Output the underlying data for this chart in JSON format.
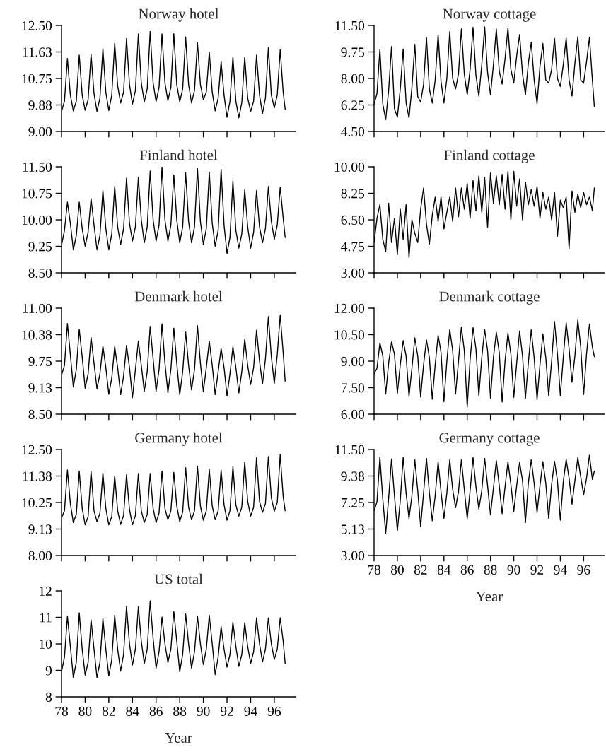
{
  "chart_data": [
    {
      "type": "line",
      "title": "Norway hotel",
      "tick_labels": "y",
      "xlim": [
        78,
        97.8
      ],
      "xticks": [
        {
          "value": 78,
          "label": null
        },
        {
          "value": 80,
          "label": null
        },
        {
          "value": 82,
          "label": null
        },
        {
          "value": 84,
          "label": null
        },
        {
          "value": 86,
          "label": null
        },
        {
          "value": 88,
          "label": null
        },
        {
          "value": 90,
          "label": null
        },
        {
          "value": 92,
          "label": null
        },
        {
          "value": 94,
          "label": null
        },
        {
          "value": 96,
          "label": null
        }
      ],
      "ylim": [
        9,
        12.5
      ],
      "yticks": [
        {
          "value": 9,
          "label": "9.00"
        },
        {
          "value": 9.875,
          "label": "9.88"
        },
        {
          "value": 10.75,
          "label": "10.75"
        },
        {
          "value": 11.625,
          "label": "11.63"
        },
        {
          "value": 12.5,
          "label": "12.50"
        }
      ],
      "x": [
        78,
        78.25,
        78.5,
        78.75,
        79,
        79.25,
        79.5,
        79.75,
        80,
        80.25,
        80.5,
        80.75,
        81,
        81.25,
        81.5,
        81.75,
        82,
        82.25,
        82.5,
        82.75,
        83,
        83.25,
        83.5,
        83.75,
        84,
        84.25,
        84.5,
        84.75,
        85,
        85.25,
        85.5,
        85.75,
        86,
        86.25,
        86.5,
        86.75,
        87,
        87.25,
        87.5,
        87.75,
        88,
        88.25,
        88.5,
        88.75,
        89,
        89.25,
        89.5,
        89.75,
        90,
        90.25,
        90.5,
        90.75,
        91,
        91.25,
        91.5,
        91.75,
        92,
        92.25,
        92.5,
        92.75,
        93,
        93.25,
        93.5,
        93.75,
        94,
        94.25,
        94.5,
        94.75,
        95,
        95.25,
        95.5,
        95.75,
        96,
        96.25,
        96.5,
        96.75,
        96.92
      ],
      "series": [
        {
          "color": "#000000",
          "values": [
            9.66,
            10.0,
            11.41,
            10.2,
            9.68,
            10.0,
            11.52,
            10.2,
            9.7,
            10.05,
            11.55,
            10.25,
            9.66,
            10.1,
            11.73,
            10.3,
            9.69,
            10.2,
            11.91,
            10.5,
            9.94,
            10.3,
            12.07,
            10.55,
            9.9,
            10.35,
            12.22,
            10.6,
            9.98,
            10.4,
            12.3,
            10.6,
            9.99,
            10.45,
            12.22,
            10.6,
            10.02,
            10.45,
            12.23,
            10.55,
            9.98,
            10.4,
            12.12,
            10.55,
            9.94,
            10.35,
            11.93,
            10.55,
            10.05,
            10.3,
            11.62,
            10.3,
            9.68,
            10.1,
            11.3,
            10.2,
            9.47,
            10.0,
            11.46,
            10.0,
            9.45,
            9.95,
            11.46,
            10.1,
            9.66,
            10.0,
            11.52,
            10.2,
            9.59,
            10.1,
            11.77,
            10.2,
            9.78,
            10.2,
            11.7,
            10.3,
            9.73
          ]
        }
      ]
    },
    {
      "type": "line",
      "title": "Norway cottage",
      "tick_labels": "y",
      "xlim": [
        78,
        97.8
      ],
      "xticks": [
        {
          "value": 78,
          "label": null
        },
        {
          "value": 80,
          "label": null
        },
        {
          "value": 82,
          "label": null
        },
        {
          "value": 84,
          "label": null
        },
        {
          "value": 86,
          "label": null
        },
        {
          "value": 88,
          "label": null
        },
        {
          "value": 90,
          "label": null
        },
        {
          "value": 92,
          "label": null
        },
        {
          "value": 94,
          "label": null
        },
        {
          "value": 96,
          "label": null
        }
      ],
      "ylim": [
        4.5,
        11.5
      ],
      "yticks": [
        {
          "value": 4.5,
          "label": "4.50"
        },
        {
          "value": 6.25,
          "label": "6.25"
        },
        {
          "value": 8,
          "label": "8.00"
        },
        {
          "value": 9.75,
          "label": "9.75"
        },
        {
          "value": 11.5,
          "label": "11.50"
        }
      ],
      "x": [
        78,
        78.25,
        78.5,
        78.75,
        79,
        79.25,
        79.5,
        79.75,
        80,
        80.25,
        80.5,
        80.75,
        81,
        81.25,
        81.5,
        81.75,
        82,
        82.25,
        82.5,
        82.75,
        83,
        83.25,
        83.5,
        83.75,
        84,
        84.25,
        84.5,
        84.75,
        85,
        85.25,
        85.5,
        85.75,
        86,
        86.25,
        86.5,
        86.75,
        87,
        87.25,
        87.5,
        87.75,
        88,
        88.25,
        88.5,
        88.75,
        89,
        89.25,
        89.5,
        89.75,
        90,
        90.25,
        90.5,
        90.75,
        91,
        91.25,
        91.5,
        91.75,
        92,
        92.25,
        92.5,
        92.75,
        93,
        93.25,
        93.5,
        93.75,
        94,
        94.25,
        94.5,
        94.75,
        95,
        95.25,
        95.5,
        95.75,
        96,
        96.25,
        96.5,
        96.75,
        96.92
      ],
      "series": [
        {
          "color": "#000000",
          "values": [
            6.3,
            7.0,
            9.94,
            6.3,
            5.28,
            7.2,
            10.12,
            6.0,
            5.44,
            7.3,
            9.94,
            6.4,
            5.39,
            7.4,
            10.25,
            6.8,
            6.45,
            7.6,
            10.7,
            7.3,
            6.38,
            7.9,
            10.9,
            7.8,
            6.38,
            8.0,
            11.09,
            8.0,
            7.31,
            8.3,
            11.27,
            8.3,
            6.92,
            8.6,
            11.38,
            8.2,
            6.84,
            8.9,
            11.41,
            8.4,
            6.92,
            8.9,
            11.27,
            8.5,
            7.63,
            9.3,
            11.33,
            8.6,
            7.7,
            9.5,
            10.9,
            8.3,
            6.92,
            9.0,
            10.39,
            7.9,
            6.34,
            8.8,
            10.31,
            7.9,
            7.7,
            8.6,
            10.64,
            8.0,
            7.47,
            8.9,
            10.67,
            7.9,
            6.84,
            9.0,
            10.75,
            7.9,
            7.7,
            9.1,
            10.72,
            7.9,
            6.14
          ]
        }
      ]
    },
    {
      "type": "line",
      "title": "Finland hotel",
      "tick_labels": "y",
      "xlim": [
        78,
        97.8
      ],
      "xticks": [
        {
          "value": 78,
          "label": null
        },
        {
          "value": 80,
          "label": null
        },
        {
          "value": 82,
          "label": null
        },
        {
          "value": 84,
          "label": null
        },
        {
          "value": 86,
          "label": null
        },
        {
          "value": 88,
          "label": null
        },
        {
          "value": 90,
          "label": null
        },
        {
          "value": 92,
          "label": null
        },
        {
          "value": 94,
          "label": null
        },
        {
          "value": 96,
          "label": null
        }
      ],
      "ylim": [
        8.5,
        11.5
      ],
      "yticks": [
        {
          "value": 8.5,
          "label": "8.50"
        },
        {
          "value": 9.25,
          "label": "9.25"
        },
        {
          "value": 10,
          "label": "10.00"
        },
        {
          "value": 10.75,
          "label": "10.75"
        },
        {
          "value": 11.5,
          "label": "11.50"
        }
      ],
      "x": [
        78,
        78.25,
        78.5,
        78.75,
        79,
        79.25,
        79.5,
        79.75,
        80,
        80.25,
        80.5,
        80.75,
        81,
        81.25,
        81.5,
        81.75,
        82,
        82.25,
        82.5,
        82.75,
        83,
        83.25,
        83.5,
        83.75,
        84,
        84.25,
        84.5,
        84.75,
        85,
        85.25,
        85.5,
        85.75,
        86,
        86.25,
        86.5,
        86.75,
        87,
        87.25,
        87.5,
        87.75,
        88,
        88.25,
        88.5,
        88.75,
        89,
        89.25,
        89.5,
        89.75,
        90,
        90.25,
        90.5,
        90.75,
        91,
        91.25,
        91.5,
        91.75,
        92,
        92.25,
        92.5,
        92.75,
        93,
        93.25,
        93.5,
        93.75,
        94,
        94.25,
        94.5,
        94.75,
        95,
        95.25,
        95.5,
        95.75,
        96,
        96.25,
        96.5,
        96.75,
        96.92
      ],
      "series": [
        {
          "color": "#000000",
          "values": [
            9.28,
            9.7,
            10.5,
            9.9,
            9.15,
            9.55,
            10.5,
            9.75,
            9.25,
            9.65,
            10.6,
            9.85,
            9.15,
            9.55,
            10.83,
            9.75,
            9.15,
            9.6,
            10.94,
            9.8,
            9.3,
            9.75,
            11.18,
            9.9,
            9.4,
            9.8,
            11.2,
            10.0,
            9.35,
            9.8,
            11.38,
            10.0,
            9.4,
            9.85,
            11.49,
            10.0,
            9.4,
            9.85,
            11.27,
            10.0,
            9.35,
            9.8,
            11.33,
            9.95,
            9.35,
            9.8,
            11.45,
            9.95,
            9.3,
            9.75,
            11.35,
            9.9,
            9.25,
            9.7,
            11.43,
            9.85,
            9.05,
            9.5,
            11.1,
            9.7,
            9.2,
            9.6,
            10.85,
            9.8,
            9.2,
            9.65,
            10.83,
            9.8,
            9.35,
            9.75,
            10.94,
            9.95,
            9.45,
            9.85,
            10.93,
            10.05,
            9.5
          ]
        }
      ]
    },
    {
      "type": "line",
      "title": "Finland cottage",
      "tick_labels": "y",
      "xlim": [
        78,
        97.8
      ],
      "xticks": [
        {
          "value": 78,
          "label": null
        },
        {
          "value": 80,
          "label": null
        },
        {
          "value": 82,
          "label": null
        },
        {
          "value": 84,
          "label": null
        },
        {
          "value": 86,
          "label": null
        },
        {
          "value": 88,
          "label": null
        },
        {
          "value": 90,
          "label": null
        },
        {
          "value": 92,
          "label": null
        },
        {
          "value": 94,
          "label": null
        },
        {
          "value": 96,
          "label": null
        }
      ],
      "ylim": [
        3,
        10
      ],
      "yticks": [
        {
          "value": 3,
          "label": "3.00"
        },
        {
          "value": 4.75,
          "label": "4.75"
        },
        {
          "value": 6.5,
          "label": "6.50"
        },
        {
          "value": 8.25,
          "label": "8.25"
        },
        {
          "value": 10,
          "label": "10.00"
        }
      ],
      "x": [
        78,
        78.25,
        78.5,
        78.75,
        79,
        79.25,
        79.5,
        79.75,
        80,
        80.25,
        80.5,
        80.75,
        81,
        81.25,
        81.5,
        81.75,
        82,
        82.25,
        82.5,
        82.75,
        83,
        83.25,
        83.5,
        83.75,
        84,
        84.25,
        84.5,
        84.75,
        85,
        85.25,
        85.5,
        85.75,
        86,
        86.25,
        86.5,
        86.75,
        87,
        87.25,
        87.5,
        87.75,
        88,
        88.25,
        88.5,
        88.75,
        89,
        89.25,
        89.5,
        89.75,
        90,
        90.25,
        90.5,
        90.75,
        91,
        91.25,
        91.5,
        91.75,
        92,
        92.25,
        92.5,
        92.75,
        93,
        93.25,
        93.5,
        93.75,
        94,
        94.25,
        94.5,
        94.75,
        95,
        95.25,
        95.5,
        95.75,
        96,
        96.25,
        96.5,
        96.75,
        96.92
      ],
      "series": [
        {
          "color": "#000000",
          "values": [
            5.0,
            6.6,
            7.5,
            5.2,
            4.4,
            7.6,
            5.0,
            6.6,
            4.2,
            7.2,
            5.2,
            7.5,
            4.0,
            6.5,
            5.6,
            5.0,
            7.2,
            8.6,
            6.2,
            4.9,
            6.8,
            8.0,
            6.4,
            8.0,
            5.9,
            7.0,
            8.0,
            6.4,
            8.6,
            6.7,
            8.6,
            7.2,
            8.9,
            6.6,
            9.1,
            7.1,
            9.4,
            7.0,
            9.3,
            6.0,
            9.6,
            7.6,
            9.4,
            7.5,
            9.5,
            7.2,
            9.7,
            6.5,
            9.7,
            7.4,
            9.2,
            6.5,
            9.0,
            7.5,
            8.5,
            7.4,
            8.7,
            6.6,
            8.3,
            7.2,
            8.0,
            6.5,
            8.3,
            5.4,
            7.8,
            7.3,
            8.0,
            4.6,
            8.4,
            7.0,
            8.2,
            7.3,
            8.3,
            7.5,
            8.0,
            7.1,
            8.6
          ]
        }
      ]
    },
    {
      "type": "line",
      "title": "Denmark hotel",
      "tick_labels": "y",
      "xlim": [
        78,
        97.8
      ],
      "xticks": [
        {
          "value": 78,
          "label": null
        },
        {
          "value": 80,
          "label": null
        },
        {
          "value": 82,
          "label": null
        },
        {
          "value": 84,
          "label": null
        },
        {
          "value": 86,
          "label": null
        },
        {
          "value": 88,
          "label": null
        },
        {
          "value": 90,
          "label": null
        },
        {
          "value": 92,
          "label": null
        },
        {
          "value": 94,
          "label": null
        },
        {
          "value": 96,
          "label": null
        }
      ],
      "ylim": [
        8.5,
        11
      ],
      "yticks": [
        {
          "value": 8.5,
          "label": "8.50"
        },
        {
          "value": 9.125,
          "label": "9.13"
        },
        {
          "value": 9.75,
          "label": "9.75"
        },
        {
          "value": 10.375,
          "label": "10.38"
        },
        {
          "value": 11,
          "label": "11.00"
        }
      ],
      "x": [
        78,
        78.25,
        78.5,
        78.75,
        79,
        79.25,
        79.5,
        79.75,
        80,
        80.25,
        80.5,
        80.75,
        81,
        81.25,
        81.5,
        81.75,
        82,
        82.25,
        82.5,
        82.75,
        83,
        83.25,
        83.5,
        83.75,
        84,
        84.25,
        84.5,
        84.75,
        85,
        85.25,
        85.5,
        85.75,
        86,
        86.25,
        86.5,
        86.75,
        87,
        87.25,
        87.5,
        87.75,
        88,
        88.25,
        88.5,
        88.75,
        89,
        89.25,
        89.5,
        89.75,
        90,
        90.25,
        90.5,
        90.75,
        91,
        91.25,
        91.5,
        91.75,
        92,
        92.25,
        92.5,
        92.75,
        93,
        93.25,
        93.5,
        93.75,
        94,
        94.25,
        94.5,
        94.75,
        95,
        95.25,
        95.5,
        95.75,
        96,
        96.25,
        96.5,
        96.75,
        96.92
      ],
      "series": [
        {
          "color": "#000000",
          "values": [
            9.42,
            9.65,
            10.64,
            9.9,
            9.14,
            9.55,
            10.5,
            9.85,
            9.11,
            9.45,
            10.31,
            9.7,
            9.1,
            9.45,
            10.11,
            9.6,
            8.97,
            9.35,
            10.09,
            9.6,
            8.96,
            9.4,
            10.12,
            9.6,
            8.89,
            9.55,
            10.22,
            9.65,
            9.04,
            9.5,
            10.57,
            9.8,
            9.04,
            9.55,
            10.63,
            9.7,
            9.01,
            9.55,
            10.53,
            9.7,
            8.96,
            9.5,
            10.44,
            9.65,
            9.07,
            9.55,
            10.59,
            9.7,
            9.03,
            9.6,
            10.22,
            9.65,
            8.96,
            9.5,
            10.05,
            9.6,
            8.93,
            9.45,
            10.09,
            9.6,
            9.0,
            9.5,
            10.27,
            9.65,
            9.2,
            9.6,
            10.48,
            9.75,
            9.21,
            9.8,
            10.8,
            9.85,
            9.23,
            9.9,
            10.84,
            9.95,
            9.28
          ]
        }
      ]
    },
    {
      "type": "line",
      "title": "Denmark cottage",
      "tick_labels": "y",
      "xlim": [
        78,
        97.8
      ],
      "xticks": [
        {
          "value": 78,
          "label": null
        },
        {
          "value": 80,
          "label": null
        },
        {
          "value": 82,
          "label": null
        },
        {
          "value": 84,
          "label": null
        },
        {
          "value": 86,
          "label": null
        },
        {
          "value": 88,
          "label": null
        },
        {
          "value": 90,
          "label": null
        },
        {
          "value": 92,
          "label": null
        },
        {
          "value": 94,
          "label": null
        },
        {
          "value": 96,
          "label": null
        }
      ],
      "ylim": [
        6,
        12
      ],
      "yticks": [
        {
          "value": 6,
          "label": "6.00"
        },
        {
          "value": 7.5,
          "label": "7.50"
        },
        {
          "value": 9,
          "label": "9.00"
        },
        {
          "value": 10.5,
          "label": "10.50"
        },
        {
          "value": 12,
          "label": "12.00"
        }
      ],
      "x": [
        78,
        78.25,
        78.5,
        78.75,
        79,
        79.25,
        79.5,
        79.75,
        80,
        80.25,
        80.5,
        80.75,
        81,
        81.25,
        81.5,
        81.75,
        82,
        82.25,
        82.5,
        82.75,
        83,
        83.25,
        83.5,
        83.75,
        84,
        84.25,
        84.5,
        84.75,
        85,
        85.25,
        85.5,
        85.75,
        86,
        86.25,
        86.5,
        86.75,
        87,
        87.25,
        87.5,
        87.75,
        88,
        88.25,
        88.5,
        88.75,
        89,
        89.25,
        89.5,
        89.75,
        90,
        90.25,
        90.5,
        90.75,
        91,
        91.25,
        91.5,
        91.75,
        92,
        92.25,
        92.5,
        92.75,
        93,
        93.25,
        93.5,
        93.75,
        94,
        94.25,
        94.5,
        94.75,
        95,
        95.25,
        95.5,
        95.75,
        96,
        96.25,
        96.5,
        96.75,
        96.92
      ],
      "series": [
        {
          "color": "#000000",
          "values": [
            8.28,
            8.6,
            10.03,
            9.3,
            7.14,
            8.9,
            10.09,
            9.4,
            7.17,
            8.8,
            10.16,
            9.3,
            7.0,
            8.6,
            10.32,
            9.3,
            6.97,
            8.8,
            10.2,
            9.2,
            6.85,
            8.8,
            10.47,
            9.5,
            6.71,
            9.0,
            10.79,
            9.6,
            7.14,
            9.0,
            10.93,
            9.6,
            6.4,
            9.1,
            10.9,
            9.7,
            7.04,
            9.2,
            10.79,
            9.6,
            6.9,
            9.2,
            10.63,
            9.5,
            6.69,
            9.0,
            10.6,
            9.4,
            6.95,
            8.9,
            10.7,
            9.3,
            6.9,
            8.9,
            10.77,
            9.2,
            6.82,
            8.8,
            10.55,
            9.2,
            7.04,
            9.0,
            11.24,
            9.4,
            7.04,
            9.2,
            11.17,
            9.7,
            7.81,
            9.3,
            11.33,
            9.8,
            7.11,
            9.4,
            11.1,
            9.8,
            9.26
          ]
        }
      ]
    },
    {
      "type": "line",
      "title": "Germany hotel",
      "tick_labels": "y",
      "xlim": [
        78,
        97.8
      ],
      "xticks": [
        {
          "value": 78,
          "label": null
        },
        {
          "value": 80,
          "label": null
        },
        {
          "value": 82,
          "label": null
        },
        {
          "value": 84,
          "label": null
        },
        {
          "value": 86,
          "label": null
        },
        {
          "value": 88,
          "label": null
        },
        {
          "value": 90,
          "label": null
        },
        {
          "value": 92,
          "label": null
        },
        {
          "value": 94,
          "label": null
        },
        {
          "value": 96,
          "label": null
        }
      ],
      "ylim": [
        8,
        12.5
      ],
      "yticks": [
        {
          "value": 8,
          "label": "8.00"
        },
        {
          "value": 9.125,
          "label": "9.13"
        },
        {
          "value": 10.25,
          "label": "10.25"
        },
        {
          "value": 11.375,
          "label": "11.38"
        },
        {
          "value": 12.5,
          "label": "12.50"
        }
      ],
      "x": [
        78,
        78.25,
        78.5,
        78.75,
        79,
        79.25,
        79.5,
        79.75,
        80,
        80.25,
        80.5,
        80.75,
        81,
        81.25,
        81.5,
        81.75,
        82,
        82.25,
        82.5,
        82.75,
        83,
        83.25,
        83.5,
        83.75,
        84,
        84.25,
        84.5,
        84.75,
        85,
        85.25,
        85.5,
        85.75,
        86,
        86.25,
        86.5,
        86.75,
        87,
        87.25,
        87.5,
        87.75,
        88,
        88.25,
        88.5,
        88.75,
        89,
        89.25,
        89.5,
        89.75,
        90,
        90.25,
        90.5,
        90.75,
        91,
        91.25,
        91.5,
        91.75,
        92,
        92.25,
        92.5,
        92.75,
        93,
        93.25,
        93.5,
        93.75,
        94,
        94.25,
        94.5,
        94.75,
        95,
        95.25,
        95.5,
        95.75,
        96,
        96.25,
        96.5,
        96.75,
        96.92
      ],
      "series": [
        {
          "color": "#000000",
          "values": [
            9.6,
            9.9,
            11.63,
            10.2,
            9.4,
            9.75,
            11.58,
            10.0,
            9.3,
            9.65,
            11.57,
            9.9,
            9.44,
            9.8,
            11.5,
            10.0,
            9.3,
            9.65,
            11.38,
            9.9,
            9.32,
            9.7,
            11.43,
            9.95,
            9.3,
            9.7,
            11.48,
            9.9,
            9.4,
            9.75,
            11.48,
            10.0,
            9.4,
            9.8,
            11.58,
            10.0,
            9.52,
            9.9,
            11.53,
            10.1,
            9.44,
            9.85,
            11.73,
            10.05,
            9.52,
            9.9,
            11.8,
            10.1,
            9.5,
            9.9,
            11.66,
            10.1,
            9.52,
            9.9,
            11.63,
            10.15,
            9.5,
            9.9,
            11.78,
            10.15,
            9.67,
            10.05,
            11.98,
            10.3,
            9.67,
            10.05,
            12.16,
            10.3,
            9.83,
            10.2,
            12.2,
            10.45,
            9.88,
            10.25,
            12.28,
            10.5,
            9.9
          ]
        }
      ]
    },
    {
      "type": "line",
      "title": "Germany cottage",
      "xlabel": "Year",
      "xlim": [
        78,
        97.8
      ],
      "xticks": [
        78,
        80,
        82,
        84,
        86,
        88,
        90,
        92,
        94,
        96
      ],
      "ylim": [
        3,
        11.5
      ],
      "yticks": [
        {
          "value": 3,
          "label": "3.00"
        },
        {
          "value": 5.125,
          "label": "5.13"
        },
        {
          "value": 7.25,
          "label": "7.25"
        },
        {
          "value": 9.375,
          "label": "9.38"
        },
        {
          "value": 11.5,
          "label": "11.50"
        }
      ],
      "x": [
        78,
        78.25,
        78.5,
        78.75,
        79,
        79.25,
        79.5,
        79.75,
        80,
        80.25,
        80.5,
        80.75,
        81,
        81.25,
        81.5,
        81.75,
        82,
        82.25,
        82.5,
        82.75,
        83,
        83.25,
        83.5,
        83.75,
        84,
        84.25,
        84.5,
        84.75,
        85,
        85.25,
        85.5,
        85.75,
        86,
        86.25,
        86.5,
        86.75,
        87,
        87.25,
        87.5,
        87.75,
        88,
        88.25,
        88.5,
        88.75,
        89,
        89.25,
        89.5,
        89.75,
        90,
        90.25,
        90.5,
        90.75,
        91,
        91.25,
        91.5,
        91.75,
        92,
        92.25,
        92.5,
        92.75,
        93,
        93.25,
        93.5,
        93.75,
        94,
        94.25,
        94.5,
        94.75,
        95,
        95.25,
        95.5,
        95.75,
        96,
        96.25,
        96.5,
        96.75,
        96.92
      ],
      "series": [
        {
          "color": "#000000",
          "values": [
            6.6,
            7.3,
            10.9,
            7.5,
            4.79,
            7.6,
            10.74,
            7.8,
            4.99,
            7.4,
            10.86,
            8.0,
            5.98,
            7.8,
            10.67,
            8.2,
            5.31,
            8.0,
            10.8,
            8.0,
            5.79,
            7.8,
            10.52,
            8.1,
            5.98,
            8.0,
            10.67,
            8.3,
            6.83,
            8.1,
            10.67,
            8.3,
            5.98,
            8.2,
            10.86,
            8.5,
            6.73,
            8.2,
            10.8,
            8.6,
            6.26,
            8.4,
            10.61,
            8.6,
            6.36,
            8.5,
            10.52,
            8.7,
            6.55,
            8.6,
            10.48,
            9.0,
            5.64,
            8.8,
            10.67,
            8.8,
            6.45,
            8.6,
            10.52,
            8.8,
            5.98,
            8.7,
            10.55,
            9.0,
            5.83,
            8.9,
            10.7,
            9.2,
            7.12,
            9.0,
            10.86,
            9.3,
            7.87,
            9.2,
            11.05,
            9.1,
            9.77
          ]
        }
      ]
    },
    {
      "type": "line",
      "title": "US total",
      "xlabel": "Year",
      "xlim": [
        78,
        97.8
      ],
      "xticks": [
        78,
        80,
        82,
        84,
        86,
        88,
        90,
        92,
        94,
        96
      ],
      "ylim": [
        8,
        12
      ],
      "yticks": [
        8,
        9,
        10,
        11,
        12
      ],
      "x": [
        78,
        78.25,
        78.5,
        78.75,
        79,
        79.25,
        79.5,
        79.75,
        80,
        80.25,
        80.5,
        80.75,
        81,
        81.25,
        81.5,
        81.75,
        82,
        82.25,
        82.5,
        82.75,
        83,
        83.25,
        83.5,
        83.75,
        84,
        84.25,
        84.5,
        84.75,
        85,
        85.25,
        85.5,
        85.75,
        86,
        86.25,
        86.5,
        86.75,
        87,
        87.25,
        87.5,
        87.75,
        88,
        88.25,
        88.5,
        88.75,
        89,
        89.25,
        89.5,
        89.75,
        90,
        90.25,
        90.5,
        90.75,
        91,
        91.25,
        91.5,
        91.75,
        92,
        92.25,
        92.5,
        92.75,
        93,
        93.25,
        93.5,
        93.75,
        94,
        94.25,
        94.5,
        94.75,
        95,
        95.25,
        95.5,
        95.75,
        96,
        96.25,
        96.5,
        96.75,
        96.92
      ],
      "series": [
        {
          "color": "#000000",
          "values": [
            8.95,
            9.5,
            11.04,
            9.9,
            8.73,
            9.3,
            11.17,
            9.8,
            8.82,
            9.3,
            10.91,
            9.8,
            8.73,
            9.3,
            10.95,
            9.8,
            8.79,
            9.4,
            11.08,
            9.8,
            8.97,
            9.6,
            11.42,
            10.0,
            9.2,
            9.8,
            11.4,
            10.1,
            9.26,
            9.8,
            11.62,
            10.2,
            9.08,
            9.7,
            11.01,
            10.0,
            9.3,
            9.8,
            11.22,
            10.1,
            8.95,
            9.6,
            11.13,
            10.0,
            9.08,
            9.7,
            11.04,
            10.0,
            9.22,
            9.8,
            11.08,
            10.0,
            8.84,
            9.5,
            10.65,
            9.8,
            9.12,
            9.6,
            10.82,
            9.9,
            9.15,
            9.6,
            10.8,
            9.9,
            9.26,
            9.7,
            10.98,
            10.0,
            9.32,
            9.8,
            10.98,
            10.0,
            9.41,
            9.8,
            10.98,
            10.1,
            9.26
          ]
        }
      ]
    }
  ]
}
